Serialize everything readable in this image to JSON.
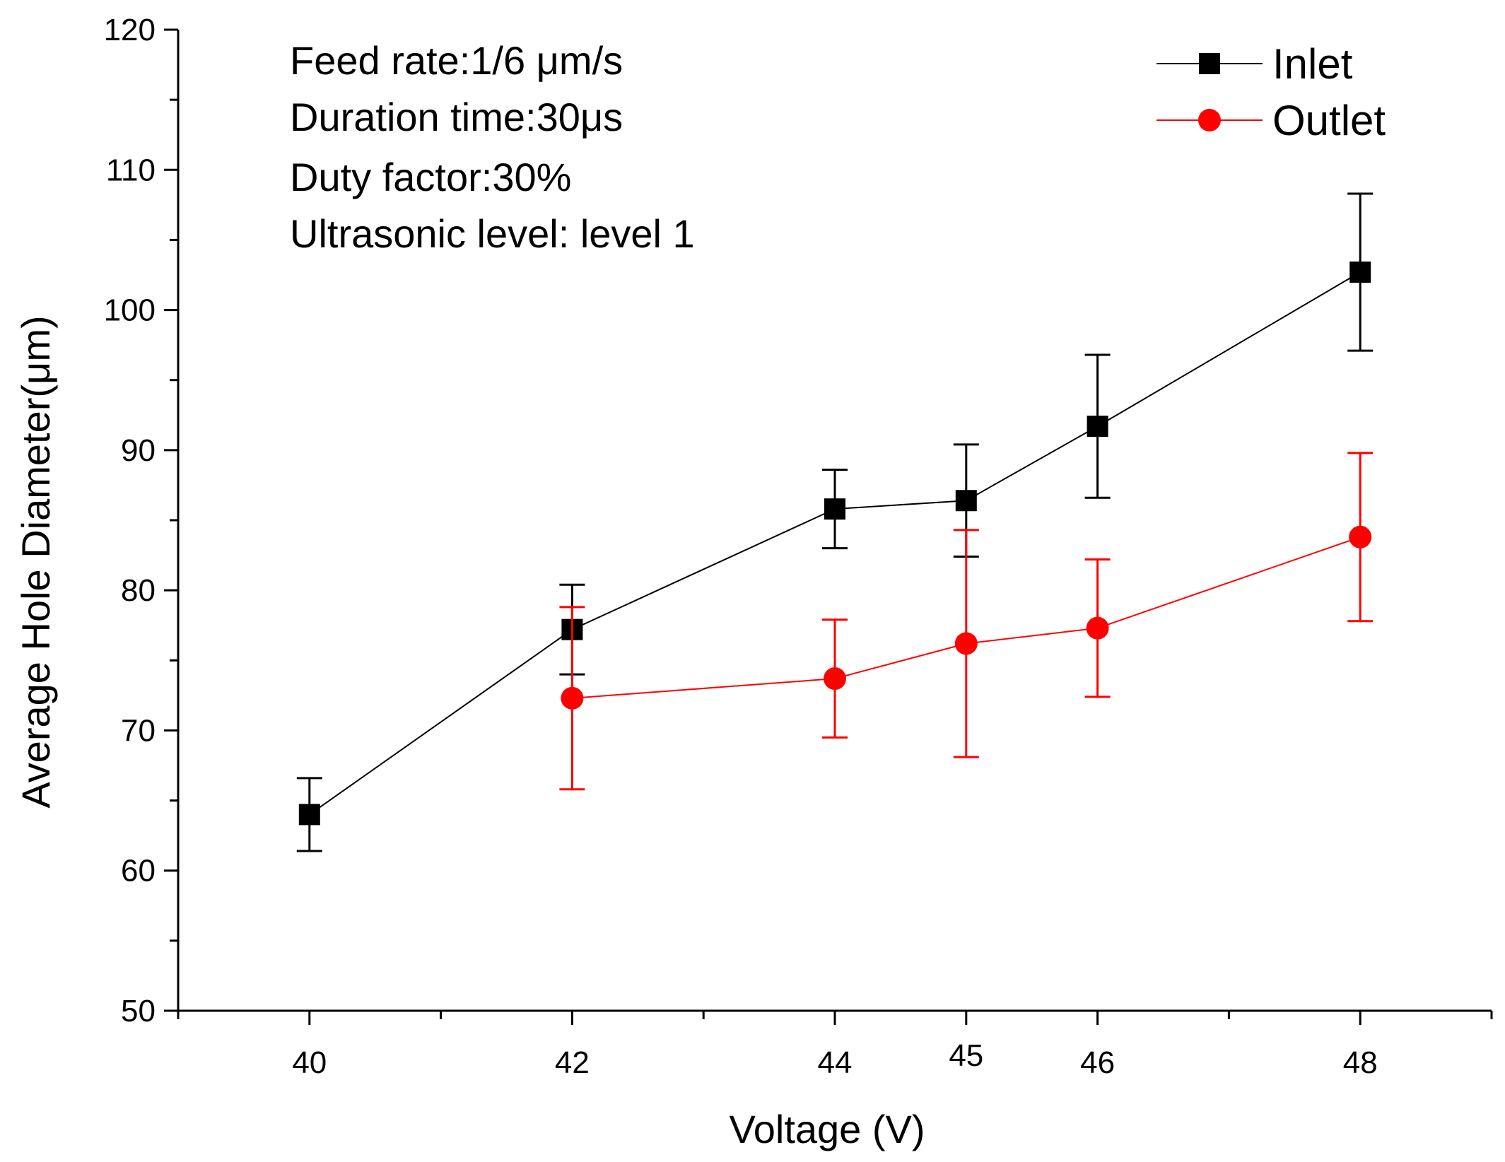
{
  "chart_data": {
    "type": "line",
    "title": "",
    "xlabel": "Voltage (V)",
    "ylabel": "Average Hole Diameter(μm)",
    "xlim": [
      39,
      49
    ],
    "ylim": [
      50,
      120
    ],
    "x_ticks": [
      40,
      42,
      44,
      45,
      46,
      48
    ],
    "x_tick_labels": [
      "40",
      "42",
      "44",
      "45",
      "46",
      "48"
    ],
    "y_ticks": [
      50,
      60,
      70,
      80,
      90,
      100,
      110,
      120
    ],
    "y_tick_labels": [
      "50",
      "60",
      "70",
      "80",
      "90",
      "100",
      "110",
      "120"
    ],
    "grid": false,
    "legend_position": "top-right",
    "annotations": [
      "Feed rate:1/6 μm/s",
      "Duration time:30μs",
      "Duty factor:30%",
      "Ultrasonic level: level 1"
    ],
    "series": [
      {
        "name": "Inlet",
        "color": "#000000",
        "marker": "square",
        "x": [
          40,
          42,
          44,
          45,
          46,
          48
        ],
        "values": [
          64.0,
          77.2,
          85.8,
          86.4,
          91.7,
          102.7
        ],
        "error": [
          2.6,
          3.2,
          2.8,
          4.0,
          5.1,
          5.6
        ]
      },
      {
        "name": "Outlet",
        "color": "#ff0000",
        "marker": "circle",
        "x": [
          42,
          44,
          45,
          46,
          48
        ],
        "values": [
          72.3,
          73.7,
          76.2,
          77.3,
          83.8
        ],
        "error": [
          6.5,
          4.2,
          8.1,
          4.9,
          6.0
        ]
      }
    ]
  }
}
